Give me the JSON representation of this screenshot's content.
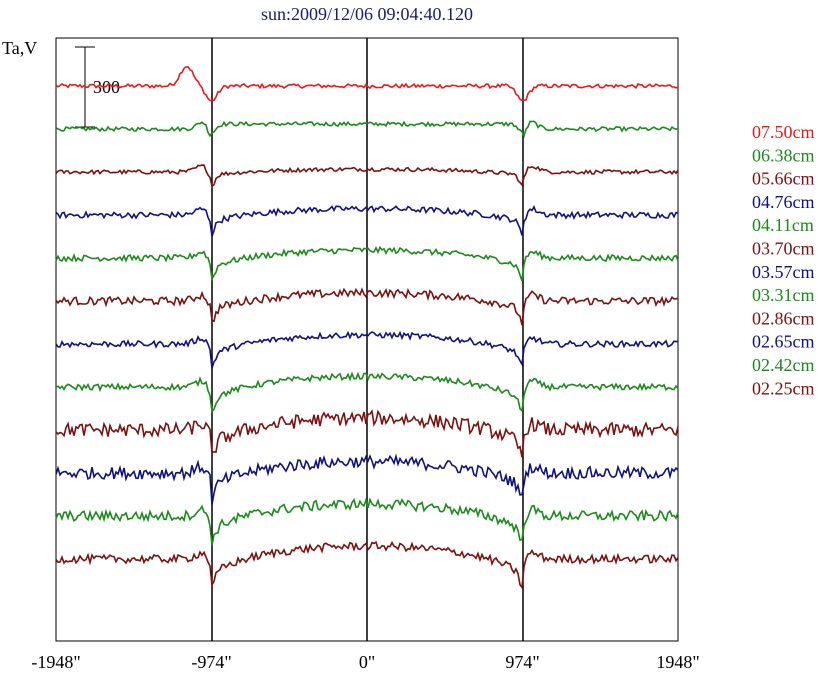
{
  "chart_data": {
    "type": "line",
    "title": "sun:2009/12/06 09:04:40.120",
    "ylabel": "Ta,V",
    "scale_bar_label": "300",
    "scale_bar_value": 300,
    "x_ticks": [
      {
        "value": -1948,
        "label": "-1948\""
      },
      {
        "value": -974,
        "label": "-974\""
      },
      {
        "value": 0,
        "label": "0\""
      },
      {
        "value": 974,
        "label": "974\""
      },
      {
        "value": 1948,
        "label": "1948\""
      }
    ],
    "xlim": [
      -1948,
      1948
    ],
    "vertical_lines": [
      -974,
      0,
      974
    ],
    "series": [
      {
        "name": "07.50cm",
        "color": "#e8191c",
        "profile": "limb_bright",
        "amplitude": 0,
        "noise": 2
      },
      {
        "name": "06.38cm",
        "color": "#1a8a1a",
        "profile": "flat",
        "amplitude": 15,
        "noise": 2
      },
      {
        "name": "05.66cm",
        "color": "#7a1010",
        "profile": "dome",
        "amplitude": 22,
        "noise": 2
      },
      {
        "name": "04.76cm",
        "color": "#101080",
        "profile": "dome",
        "amplitude": 48,
        "noise": 3
      },
      {
        "name": "04.11cm",
        "color": "#1a8a1a",
        "profile": "dome",
        "amplitude": 60,
        "noise": 3
      },
      {
        "name": "03.70cm",
        "color": "#7a1010",
        "profile": "dome",
        "amplitude": 62,
        "noise": 4
      },
      {
        "name": "03.57cm",
        "color": "#101080",
        "profile": "dome",
        "amplitude": 70,
        "noise": 3
      },
      {
        "name": "03.31cm",
        "color": "#1a8a1a",
        "profile": "dome",
        "amplitude": 82,
        "noise": 3
      },
      {
        "name": "02.86cm",
        "color": "#7a1010",
        "profile": "dome",
        "amplitude": 92,
        "noise": 7
      },
      {
        "name": "02.65cm",
        "color": "#101080",
        "profile": "dome",
        "amplitude": 88,
        "noise": 6
      },
      {
        "name": "02.42cm",
        "color": "#1a8a1a",
        "profile": "dome",
        "amplitude": 92,
        "noise": 5
      },
      {
        "name": "02.25cm",
        "color": "#7a1010",
        "profile": "dome",
        "amplitude": 100,
        "noise": 4
      }
    ]
  }
}
